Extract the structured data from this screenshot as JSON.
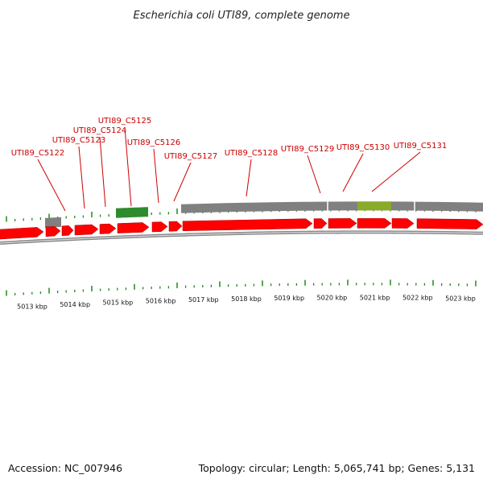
{
  "header": {
    "title": "Escherichia coli UTI89, complete genome"
  },
  "footer": {
    "accession": "Accession: NC_007946",
    "summary": "Topology: circular; Length: 5,065,741 bp; Genes: 5,131"
  },
  "colors": {
    "forward_gene": "#ff0000",
    "gene_outline": "#aa0000",
    "backbone": "#888888",
    "tick": "#1a8a1a",
    "label": "#cc0000",
    "gray_feature": "#808080",
    "green_feature": "#2e8b2e",
    "olive_feature": "#8aaa2a"
  },
  "genes": [
    {
      "label": "UTI89_C5122"
    },
    {
      "label": "UTI89_C5123"
    },
    {
      "label": "UTI89_C5124"
    },
    {
      "label": "UTI89_C5125"
    },
    {
      "label": "UTI89_C5126"
    },
    {
      "label": "UTI89_C5127"
    },
    {
      "label": "UTI89_C5128"
    },
    {
      "label": "UTI89_C5129"
    },
    {
      "label": "UTI89_C5130"
    },
    {
      "label": "UTI89_C5131"
    }
  ],
  "kbp_labels": [
    "5013 kbp",
    "5014 kbp",
    "5015 kbp",
    "5016 kbp",
    "5017 kbp",
    "5018 kbp",
    "5019 kbp",
    "5020 kbp",
    "5021 kbp",
    "5022 kbp",
    "5023 kbp"
  ]
}
